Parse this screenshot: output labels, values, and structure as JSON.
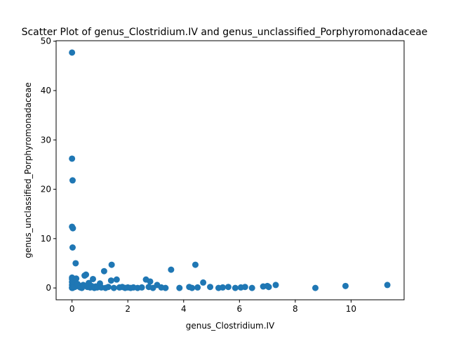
{
  "chart_data": {
    "type": "scatter",
    "title": "Scatter Plot of genus_Clostridium.IV and genus_unclassified_Porphyromonadaceae",
    "xlabel": "genus_Clostridium.IV",
    "ylabel": "genus_unclassified_Porphyromonadaceae",
    "xlim": [
      -0.57,
      11.9
    ],
    "ylim": [
      -2.4,
      50.1
    ],
    "xticks": [
      0,
      2,
      4,
      6,
      8,
      10
    ],
    "yticks": [
      0,
      10,
      20,
      30,
      40,
      50
    ],
    "grid": false,
    "legend": "none",
    "marker_color": "#1f77b4",
    "points": [
      [
        0.0,
        47.7
      ],
      [
        0.0,
        26.2
      ],
      [
        0.02,
        21.8
      ],
      [
        0.0,
        12.4
      ],
      [
        0.03,
        12.1
      ],
      [
        0.02,
        8.2
      ],
      [
        0.13,
        5.0
      ],
      [
        0.0,
        2.1
      ],
      [
        0.0,
        1.8
      ],
      [
        0.05,
        1.5
      ],
      [
        0.0,
        1.2
      ],
      [
        0.1,
        0.9
      ],
      [
        0.0,
        0.6
      ],
      [
        0.05,
        0.4
      ],
      [
        0.1,
        0.2
      ],
      [
        0.0,
        0.1
      ],
      [
        0.0,
        0.0
      ],
      [
        0.02,
        0.0
      ],
      [
        0.15,
        1.9
      ],
      [
        0.2,
        0.8
      ],
      [
        0.25,
        0.3
      ],
      [
        0.3,
        0.1
      ],
      [
        0.35,
        0.0
      ],
      [
        0.4,
        0.6
      ],
      [
        0.45,
        2.5
      ],
      [
        0.5,
        2.7
      ],
      [
        0.55,
        0.2
      ],
      [
        0.6,
        1.0
      ],
      [
        0.65,
        0.1
      ],
      [
        0.7,
        0.4
      ],
      [
        0.75,
        1.8
      ],
      [
        0.8,
        0.0
      ],
      [
        0.85,
        0.3
      ],
      [
        0.9,
        0.1
      ],
      [
        1.0,
        0.9
      ],
      [
        1.05,
        0.1
      ],
      [
        1.15,
        3.4
      ],
      [
        1.2,
        0.0
      ],
      [
        1.3,
        0.2
      ],
      [
        1.4,
        1.5
      ],
      [
        1.42,
        4.7
      ],
      [
        1.5,
        0.0
      ],
      [
        1.6,
        1.7
      ],
      [
        1.7,
        0.1
      ],
      [
        1.8,
        0.2
      ],
      [
        1.9,
        0.0
      ],
      [
        2.0,
        0.1
      ],
      [
        2.1,
        0.0
      ],
      [
        2.2,
        0.1
      ],
      [
        2.35,
        0.0
      ],
      [
        2.5,
        0.1
      ],
      [
        2.65,
        1.7
      ],
      [
        2.75,
        0.2
      ],
      [
        2.8,
        1.3
      ],
      [
        2.9,
        0.0
      ],
      [
        3.05,
        0.6
      ],
      [
        3.2,
        0.1
      ],
      [
        3.35,
        0.0
      ],
      [
        3.55,
        3.7
      ],
      [
        3.85,
        0.0
      ],
      [
        4.2,
        0.2
      ],
      [
        4.3,
        0.0
      ],
      [
        4.42,
        4.7
      ],
      [
        4.5,
        0.1
      ],
      [
        4.7,
        1.1
      ],
      [
        4.95,
        0.2
      ],
      [
        5.25,
        0.0
      ],
      [
        5.4,
        0.1
      ],
      [
        5.6,
        0.2
      ],
      [
        5.85,
        0.0
      ],
      [
        6.05,
        0.1
      ],
      [
        6.2,
        0.2
      ],
      [
        6.45,
        0.0
      ],
      [
        6.85,
        0.3
      ],
      [
        7.0,
        0.4
      ],
      [
        7.05,
        0.2
      ],
      [
        7.3,
        0.6
      ],
      [
        8.72,
        0.0
      ],
      [
        9.8,
        0.4
      ],
      [
        11.3,
        0.6
      ]
    ]
  }
}
